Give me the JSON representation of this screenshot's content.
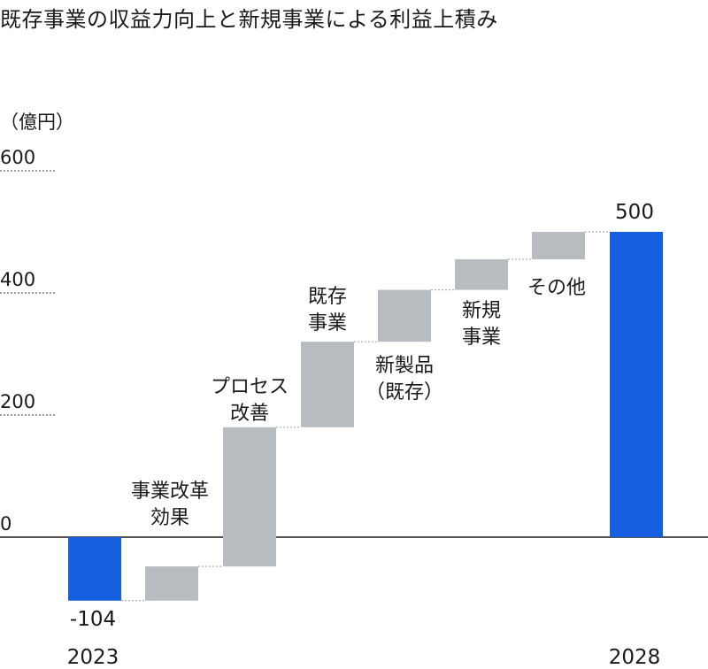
{
  "chart_data": {
    "type": "bar",
    "subtype": "waterfall",
    "title": "既存事業の収益力向上と新規事業による利益上積み",
    "ylabel": "（億円）",
    "yticks": [
      0,
      200,
      400,
      600
    ],
    "ytick_labels": [
      "0",
      "200",
      "400",
      "600"
    ],
    "ylim": [
      -130,
      620
    ],
    "steps": [
      {
        "label_lines": [
          "",
          ""
        ],
        "kind": "total",
        "start": 0,
        "end": -104,
        "value_label": "-104",
        "year_label": "2023"
      },
      {
        "label_lines": [
          "事業改革",
          "効果"
        ],
        "kind": "change",
        "start": -104,
        "end": -48
      },
      {
        "label_lines": [
          "プロセス",
          "改善"
        ],
        "kind": "change",
        "start": -48,
        "end": 180
      },
      {
        "label_lines": [
          "既存",
          "事業"
        ],
        "kind": "change",
        "start": 180,
        "end": 320
      },
      {
        "label_lines": [
          "新製品",
          "（既存）"
        ],
        "kind": "change",
        "start": 320,
        "end": 405
      },
      {
        "label_lines": [
          "新規",
          "事業"
        ],
        "kind": "change",
        "start": 405,
        "end": 455
      },
      {
        "label_lines": [
          "その他",
          ""
        ],
        "kind": "change",
        "start": 455,
        "end": 500
      },
      {
        "label_lines": [
          "",
          ""
        ],
        "kind": "total",
        "start": 0,
        "end": 500,
        "value_label": "500",
        "year_label": "2028"
      }
    ],
    "colors": {
      "total": "#155fe0",
      "change": "#b7bcc0",
      "gridline": "#666666",
      "axis": "#1a1a1a",
      "connector": "#aaaaaa"
    },
    "grid": false,
    "legend": "none"
  }
}
